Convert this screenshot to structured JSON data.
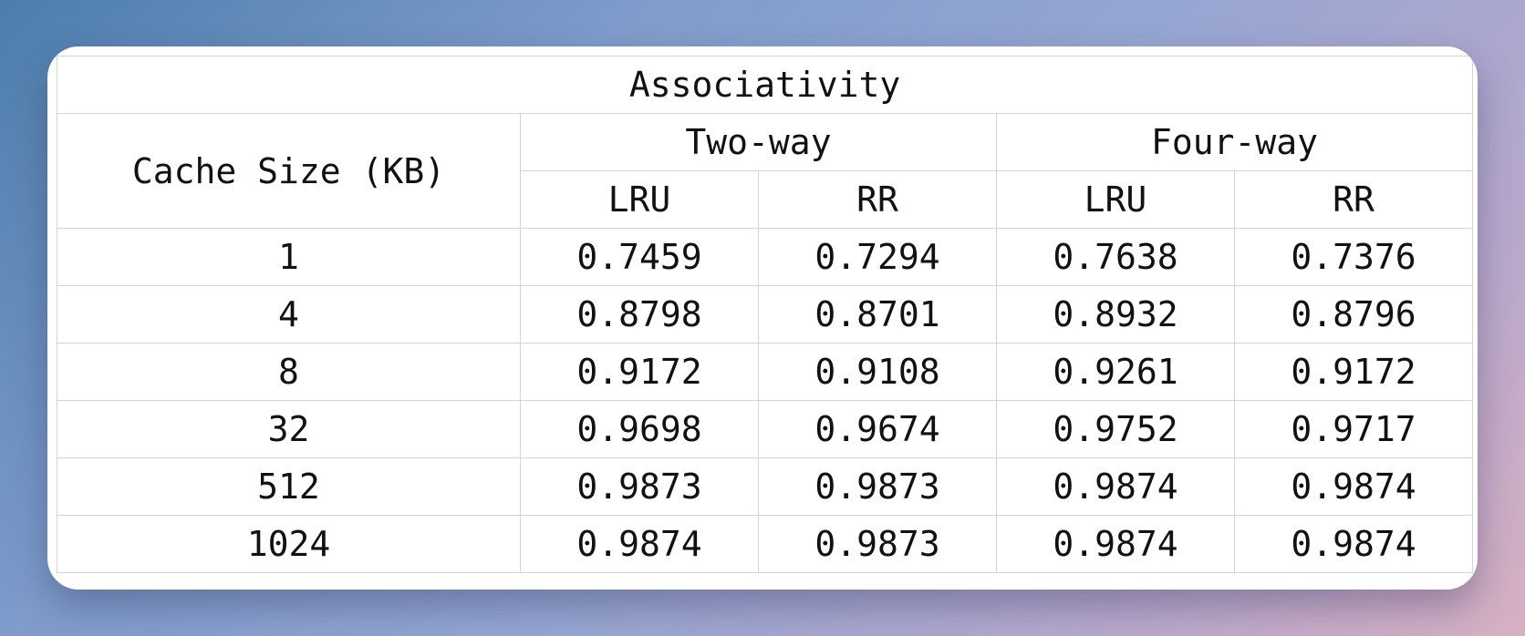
{
  "table": {
    "group_header": "Associativity",
    "row_header": "Cache Size (KB)",
    "associativity": [
      {
        "label": "Two-way",
        "policies": [
          "LRU",
          "RR"
        ]
      },
      {
        "label": "Four-way",
        "policies": [
          "LRU",
          "RR"
        ]
      }
    ],
    "rows": [
      {
        "size": "1",
        "values": [
          "0.7459",
          "0.7294",
          "0.7638",
          "0.7376"
        ]
      },
      {
        "size": "4",
        "values": [
          "0.8798",
          "0.8701",
          "0.8932",
          "0.8796"
        ]
      },
      {
        "size": "8",
        "values": [
          "0.9172",
          "0.9108",
          "0.9261",
          "0.9172"
        ]
      },
      {
        "size": "32",
        "values": [
          "0.9698",
          "0.9674",
          "0.9752",
          "0.9717"
        ]
      },
      {
        "size": "512",
        "values": [
          "0.9873",
          "0.9873",
          "0.9874",
          "0.9874"
        ]
      },
      {
        "size": "1024",
        "values": [
          "0.9874",
          "0.9873",
          "0.9874",
          "0.9874"
        ]
      }
    ]
  }
}
